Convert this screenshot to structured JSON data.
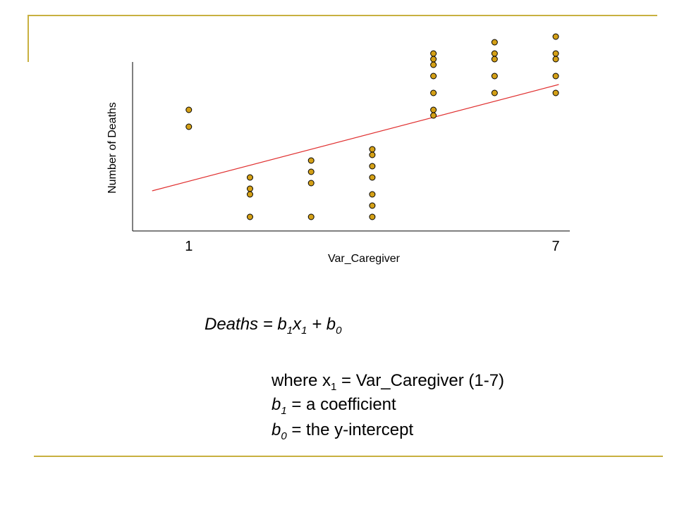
{
  "chart_data": {
    "type": "scatter",
    "y_label": "Number of Deaths",
    "x_label": "Var_Caregiver",
    "xlim": [
      0.08,
      7.23
    ],
    "xticks": [
      1,
      7
    ],
    "ylim": [
      0,
      28
    ],
    "color": "#d4a017",
    "x": [
      1,
      1,
      2,
      2,
      2,
      2,
      3,
      3,
      3,
      3,
      4,
      4,
      4,
      4,
      4,
      4,
      4,
      5,
      5,
      5,
      5,
      5,
      5,
      5,
      6,
      6,
      6,
      6,
      6,
      7,
      7,
      7,
      7,
      7
    ],
    "y": [
      17.2,
      14.8,
      7.6,
      6.0,
      5.2,
      2.0,
      10.0,
      8.4,
      6.8,
      2.0,
      11.6,
      10.8,
      9.2,
      7.6,
      5.2,
      3.6,
      2.0,
      25.2,
      24.4,
      23.6,
      22.0,
      19.6,
      17.2,
      16.4,
      26.8,
      25.2,
      24.4,
      22.0,
      19.6,
      27.6,
      25.2,
      24.4,
      22.0,
      19.6
    ],
    "trendline": {
      "x": [
        0.4,
        7.05
      ],
      "y": [
        5.7,
        20.8
      ],
      "color": "#e03030"
    }
  },
  "equation": [
    "Deaths = b",
    "1",
    "x",
    "1",
    " + b",
    "0"
  ],
  "definitions": [
    [
      "where x",
      "1",
      " = Var_Caregiver (1-7)"
    ],
    [
      "b",
      "1",
      " = a coefficient"
    ],
    [
      "b",
      "0",
      " = the y-intercept"
    ]
  ]
}
